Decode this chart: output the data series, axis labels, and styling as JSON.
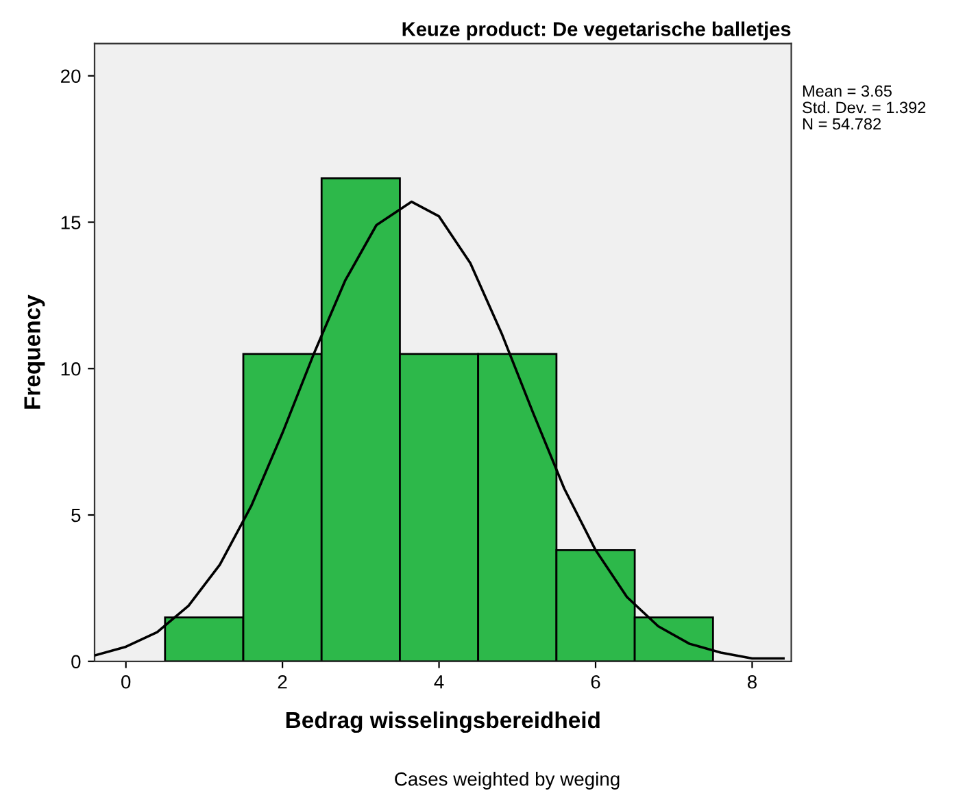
{
  "chart_data": {
    "type": "histogram",
    "title": "Keuze product: De vegetarische balletjes",
    "xlabel": "Bedrag wisselingsbereidheid",
    "ylabel": "Frequency",
    "series": [
      {
        "bins": [
          0.5,
          1.5,
          2.5,
          3.5,
          4.5,
          5.5,
          6.5,
          7.5
        ],
        "values": [
          1.5,
          10.5,
          16.5,
          10.5,
          10.5,
          3.8,
          1.5
        ],
        "color": "#2db84a"
      },
      {
        "type": "line",
        "x": [
          -0.4,
          0,
          0.4,
          0.8,
          1.2,
          1.6,
          2.0,
          2.4,
          2.8,
          3.2,
          3.65,
          4.0,
          4.4,
          4.8,
          5.2,
          5.6,
          6.0,
          6.4,
          6.8,
          7.2,
          7.6,
          8.0,
          8.4
        ],
        "values": [
          0.2,
          0.5,
          1.0,
          1.9,
          3.3,
          5.3,
          7.8,
          10.5,
          13.0,
          14.9,
          15.7,
          15.2,
          13.6,
          11.2,
          8.5,
          5.9,
          3.8,
          2.2,
          1.2,
          0.6,
          0.3,
          0.1,
          0.1
        ],
        "color": "#000000"
      }
    ],
    "xlim": [
      -0.4,
      8.5
    ],
    "ylim": [
      0,
      21.1
    ],
    "xticks": [
      0,
      2,
      4,
      6,
      8
    ],
    "yticks": [
      0,
      5,
      10,
      15,
      20
    ],
    "grid": false,
    "legend": false,
    "annotations": [
      "Mean = 3.65",
      "Std. Dev. = 1.392",
      "N = 54.782",
      "Cases weighted by weging"
    ]
  }
}
